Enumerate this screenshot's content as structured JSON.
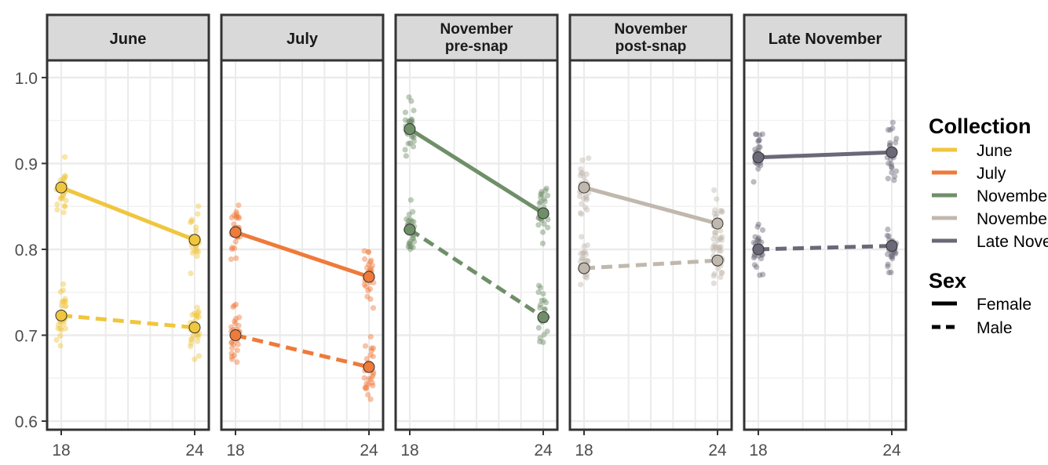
{
  "chart_data": {
    "type": "line",
    "facet_by": "Collection",
    "panels": [
      {
        "label": "June",
        "color": "#f0c63e",
        "female": {
          "x": [
            18,
            24
          ],
          "y": [
            0.872,
            0.811
          ]
        },
        "male": {
          "x": [
            18,
            24
          ],
          "y": [
            0.723,
            0.709
          ]
        }
      },
      {
        "label": "July",
        "color": "#ef7a3a",
        "female": {
          "x": [
            18,
            24
          ],
          "y": [
            0.82,
            0.768
          ]
        },
        "male": {
          "x": [
            18,
            24
          ],
          "y": [
            0.7,
            0.663
          ]
        }
      },
      {
        "label": "November\npre-snap",
        "color": "#6f8f68",
        "female": {
          "x": [
            18,
            24
          ],
          "y": [
            0.94,
            0.842
          ]
        },
        "male": {
          "x": [
            18,
            24
          ],
          "y": [
            0.823,
            0.721
          ]
        }
      },
      {
        "label": "November\npost-snap",
        "color": "#c0b8ae",
        "female": {
          "x": [
            18,
            24
          ],
          "y": [
            0.872,
            0.83
          ]
        },
        "male": {
          "x": [
            18,
            24
          ],
          "y": [
            0.778,
            0.787
          ]
        }
      },
      {
        "label": "Late November",
        "color": "#6b6878",
        "female": {
          "x": [
            18,
            24
          ],
          "y": [
            0.907,
            0.913
          ]
        },
        "male": {
          "x": [
            18,
            24
          ],
          "y": [
            0.8,
            0.804
          ]
        }
      }
    ],
    "x_ticks": [
      "18",
      "24"
    ],
    "y_ticks": [
      "0.6",
      "0.7",
      "0.8",
      "0.9",
      "1.0"
    ],
    "xlim": [
      17.5,
      24.5
    ],
    "ylim": [
      0.59,
      1.02
    ],
    "grid": true,
    "legend": {
      "placement": "right",
      "collection_title": "Collection",
      "collection_items": [
        {
          "label": "June",
          "color": "#f0c63e"
        },
        {
          "label": "July",
          "color": "#ef7a3a"
        },
        {
          "label": "November pre-snap",
          "color": "#6f8f68"
        },
        {
          "label": "November post-snap",
          "color": "#c0b8ae"
        },
        {
          "label": "Late November",
          "color": "#6b6878"
        }
      ],
      "sex_title": "Sex",
      "sex_items": [
        {
          "label": "Female",
          "linetype": "solid"
        },
        {
          "label": "Male",
          "linetype": "dashed"
        }
      ]
    }
  }
}
